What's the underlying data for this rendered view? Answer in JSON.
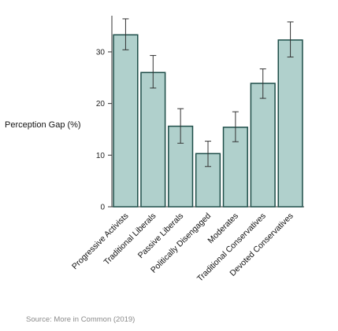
{
  "chart_data": {
    "type": "bar",
    "ylabel": "Perception Gap (%)",
    "xlabel": "",
    "categories": [
      "Progressive Activists",
      "Traditional Liberals",
      "Passive Liberals",
      "Politically Disengaged",
      "Moderates",
      "Traditional Conservatives",
      "Devoted Conservatives"
    ],
    "values": [
      33.3,
      26.0,
      15.6,
      10.3,
      15.4,
      23.9,
      32.3
    ],
    "error_low": [
      30.4,
      23.0,
      12.3,
      7.8,
      12.6,
      21.0,
      29.0
    ],
    "error_high": [
      36.4,
      29.3,
      19.0,
      12.7,
      18.4,
      26.7,
      35.8
    ],
    "ylim": [
      0,
      37
    ],
    "yticks": [
      0,
      10,
      20,
      30
    ],
    "colors": {
      "bar_fill": "#b0d0cc",
      "bar_stroke": "#1d4d48",
      "error_bar": "#333333",
      "axis": "#333333"
    }
  },
  "source": "Source: More in Common (2019)"
}
